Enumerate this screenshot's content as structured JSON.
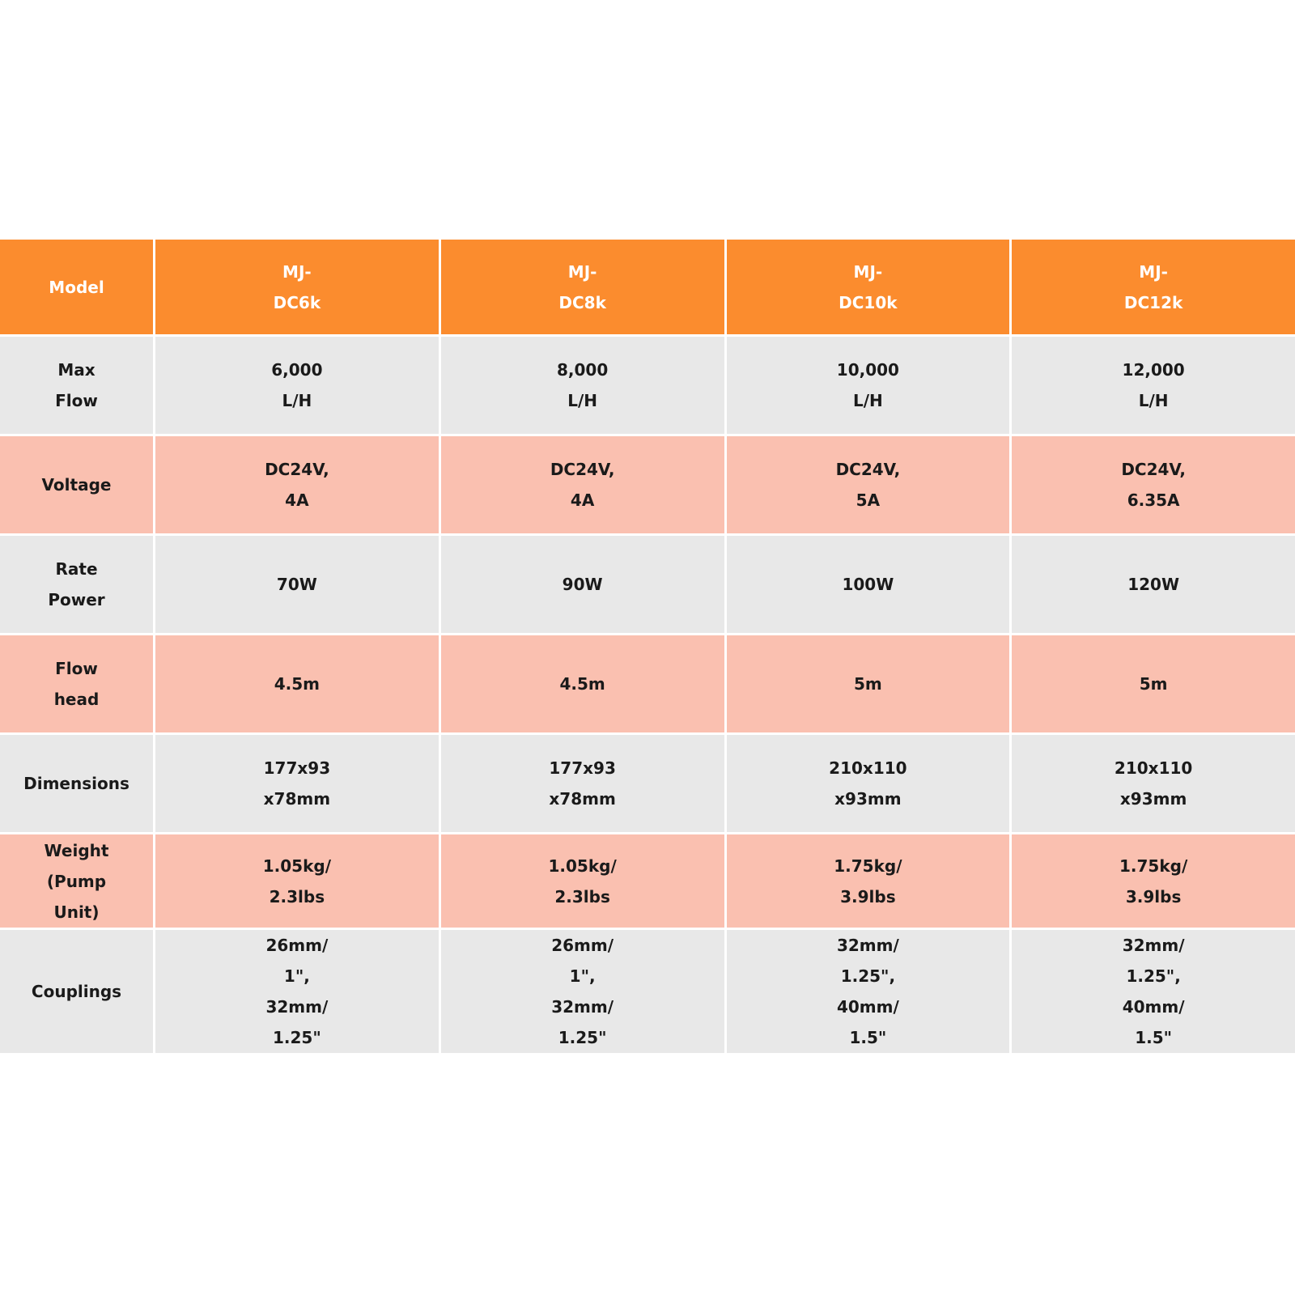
{
  "table": {
    "header": [
      [
        "Model"
      ],
      [
        "MJ-",
        "DC6k"
      ],
      [
        "MJ-",
        "DC8k"
      ],
      [
        "MJ-",
        "DC10k"
      ],
      [
        "MJ-",
        "DC12k"
      ]
    ],
    "rows": [
      [
        [
          "Max",
          "Flow"
        ],
        [
          "6,000",
          "L/H"
        ],
        [
          "8,000",
          "L/H"
        ],
        [
          "10,000",
          "L/H"
        ],
        [
          "12,000",
          "L/H"
        ]
      ],
      [
        [
          "Voltage"
        ],
        [
          "DC24V,",
          "4A"
        ],
        [
          "DC24V,",
          "4A"
        ],
        [
          "DC24V,",
          "5A"
        ],
        [
          "DC24V,",
          "6.35A"
        ]
      ],
      [
        [
          "Rate",
          "Power"
        ],
        [
          "70W"
        ],
        [
          "90W"
        ],
        [
          "100W"
        ],
        [
          "120W"
        ]
      ],
      [
        [
          "Flow",
          "head"
        ],
        [
          "4.5m"
        ],
        [
          "4.5m"
        ],
        [
          "5m"
        ],
        [
          "5m"
        ]
      ],
      [
        [
          "Dimensions"
        ],
        [
          "177x93",
          "x78mm"
        ],
        [
          "177x93",
          "x78mm"
        ],
        [
          "210x110",
          "x93mm"
        ],
        [
          "210x110",
          "x93mm"
        ]
      ],
      [
        [
          "Weight",
          "(Pump",
          "Unit)"
        ],
        [
          "1.05kg/",
          "2.3lbs"
        ],
        [
          "1.05kg/",
          "2.3lbs"
        ],
        [
          "1.75kg/",
          "3.9lbs"
        ],
        [
          "1.75kg/",
          "3.9lbs"
        ]
      ],
      [
        [
          "Couplings"
        ],
        [
          "26mm/",
          "1\",",
          "32mm/",
          "1.25\""
        ],
        [
          "26mm/",
          "1\",",
          "32mm/",
          "1.25\""
        ],
        [
          "32mm/",
          "1.25\",",
          "40mm/",
          "1.5\""
        ],
        [
          "32mm/",
          "1.25\",",
          "40mm/",
          "1.5\""
        ]
      ]
    ]
  }
}
